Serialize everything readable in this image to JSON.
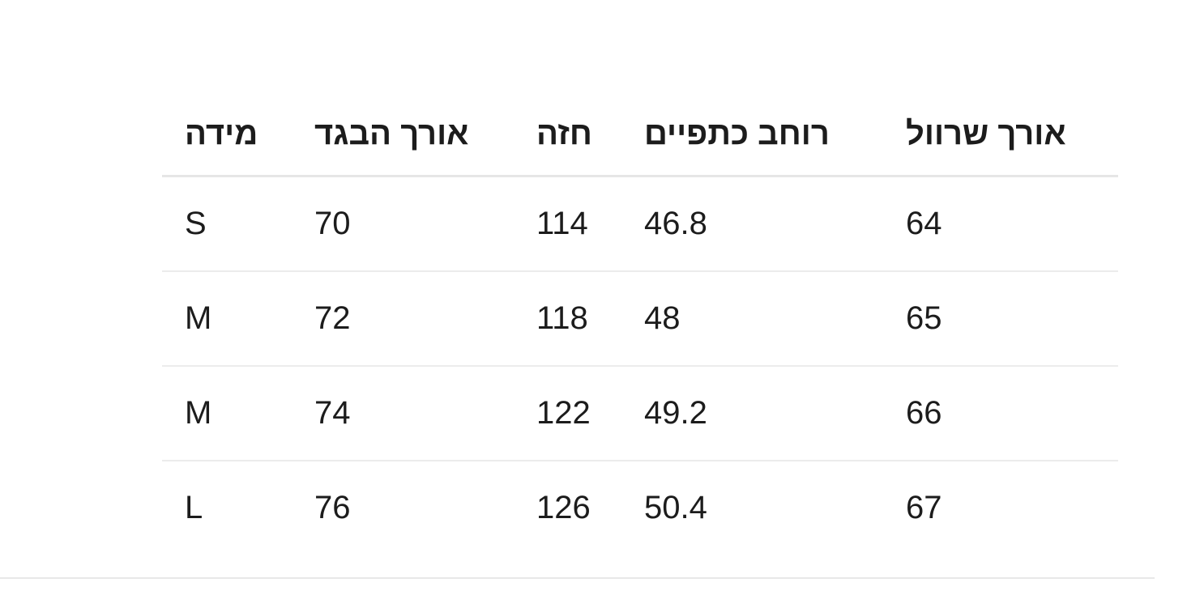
{
  "size_table": {
    "headers": [
      "מידה",
      "אורך הבגד",
      "חזה",
      "רוחב כתפיים",
      "אורך שרוול"
    ],
    "rows": [
      [
        "S",
        "70",
        "114",
        "46.8",
        "64"
      ],
      [
        "M",
        "72",
        "118",
        "48",
        "65"
      ],
      [
        "M",
        "74",
        "122",
        "49.2",
        "66"
      ],
      [
        "L",
        "76",
        "126",
        "50.4",
        "67"
      ]
    ]
  }
}
